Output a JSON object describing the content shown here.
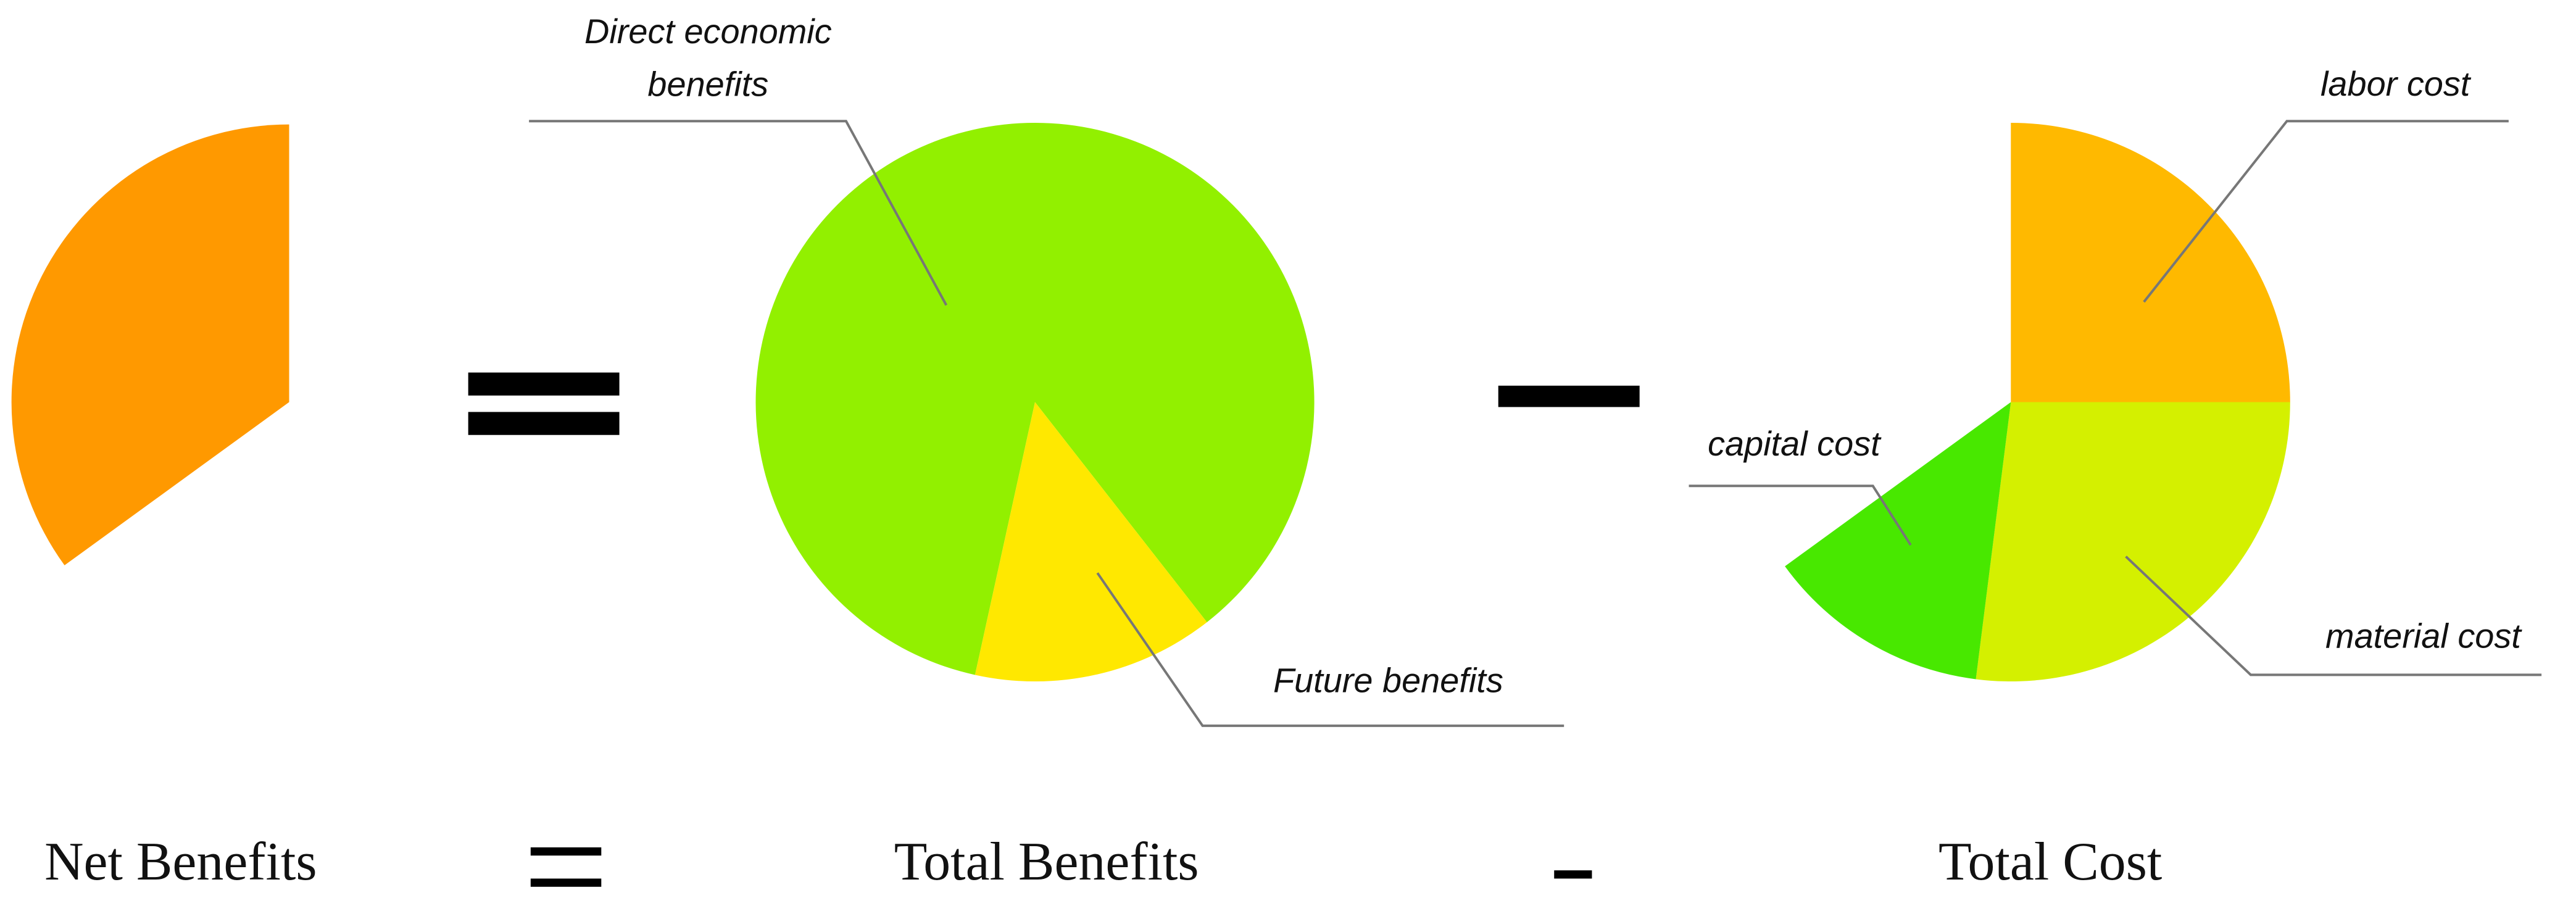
{
  "chart_data": [
    {
      "type": "pie",
      "title": "Net Benefits",
      "categories": [
        null
      ],
      "values": [
        35
      ],
      "colors": [
        "#ff9900"
      ]
    },
    {
      "type": "pie",
      "title": "Total Benefits",
      "categories": [
        "Direct economic\nbenefits",
        "Future benefits"
      ],
      "values": [
        86,
        14
      ],
      "colors": [
        "#92f000",
        "#ffe800"
      ]
    },
    {
      "type": "pie",
      "title": "Total Cost",
      "categories": [
        "labor cost",
        "material cost",
        "capital cost"
      ],
      "values": [
        25,
        27,
        13
      ],
      "colors": [
        "#ffb900",
        "#d4f000",
        "#48e800"
      ]
    }
  ]
}
